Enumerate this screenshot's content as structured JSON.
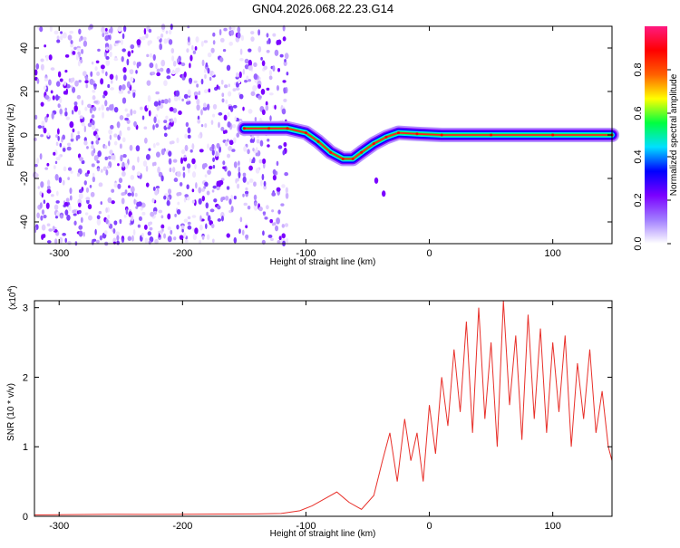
{
  "title": "GN04.2026.068.22.23.G14",
  "chart_data": [
    {
      "type": "heatmap",
      "xlabel": "Height of straight line (km)",
      "ylabel": "Frequency (Hz)",
      "xlim": [
        -320,
        148
      ],
      "ylim": [
        -50,
        50
      ],
      "x_ticks": [
        -300,
        -200,
        -100,
        0,
        100
      ],
      "y_ticks": [
        -40,
        -20,
        0,
        20,
        40
      ],
      "colorbar": {
        "label": "Normalized spectral amplitude",
        "range": [
          0,
          1
        ],
        "ticks": [
          0.0,
          0.2,
          0.4,
          0.6,
          0.8
        ],
        "tick_labels": [
          "0.0",
          "0.2",
          "0.4",
          "0.6",
          "0.8"
        ],
        "colormap": [
          "#ffffff",
          "#a07cff",
          "#7a00ff",
          "#0000ff",
          "#00e0ff",
          "#00ff40",
          "#ffff00",
          "#ff6000",
          "#ff0000",
          "#ff1a80"
        ]
      },
      "noise_region_x": [
        -320,
        -115
      ],
      "ridge": [
        {
          "x": -150,
          "y": 3
        },
        {
          "x": -130,
          "y": 3
        },
        {
          "x": -115,
          "y": 3
        },
        {
          "x": -100,
          "y": 1
        },
        {
          "x": -90,
          "y": -3
        },
        {
          "x": -80,
          "y": -8
        },
        {
          "x": -70,
          "y": -11
        },
        {
          "x": -62,
          "y": -11
        },
        {
          "x": -55,
          "y": -8
        },
        {
          "x": -45,
          "y": -4
        },
        {
          "x": -35,
          "y": -1
        },
        {
          "x": -25,
          "y": 1
        },
        {
          "x": -10,
          "y": 0.5
        },
        {
          "x": 10,
          "y": 0
        },
        {
          "x": 50,
          "y": 0
        },
        {
          "x": 100,
          "y": 0
        },
        {
          "x": 148,
          "y": 0
        }
      ],
      "outliers": [
        {
          "x": -37,
          "y": -27
        },
        {
          "x": -43,
          "y": -21
        }
      ]
    },
    {
      "type": "line",
      "xlabel": "Height of straight line (km)",
      "ylabel": "SNR (10 * v/v)",
      "y_multiplier": "(x10",
      "y_multiplier_exp": "4",
      "y_multiplier_close": ")",
      "xlim": [
        -320,
        148
      ],
      "ylim": [
        0,
        31000
      ],
      "x_ticks": [
        -300,
        -200,
        -100,
        0,
        100
      ],
      "y_ticks": [
        0,
        10000,
        20000,
        30000
      ],
      "y_tick_labels": [
        "0",
        "1",
        "2",
        "3"
      ],
      "color": "#e8302a",
      "series": [
        {
          "x": [
            -320,
            -290,
            -260,
            -230,
            -200,
            -170,
            -140,
            -120,
            -105,
            -95,
            -85,
            -75,
            -65,
            -55,
            -45,
            -38,
            -32,
            -26,
            -20,
            -15,
            -10,
            -5,
            0,
            5,
            10,
            15,
            20,
            25,
            30,
            35,
            40,
            45,
            50,
            55,
            60,
            65,
            70,
            75,
            80,
            85,
            90,
            95,
            100,
            105,
            110,
            115,
            120,
            125,
            130,
            135,
            140,
            145,
            148
          ],
          "y": [
            200,
            250,
            300,
            280,
            300,
            320,
            350,
            400,
            800,
            1500,
            2500,
            3500,
            2000,
            1000,
            3000,
            8000,
            12000,
            5000,
            14000,
            8000,
            12000,
            5000,
            16000,
            9000,
            20000,
            13000,
            24000,
            15000,
            28000,
            12000,
            30000,
            14000,
            25000,
            10000,
            31000,
            16000,
            26000,
            11000,
            29000,
            14000,
            27000,
            12000,
            25000,
            15000,
            26000,
            10000,
            22000,
            14000,
            24000,
            12000,
            18000,
            10000,
            8000
          ]
        }
      ]
    }
  ]
}
